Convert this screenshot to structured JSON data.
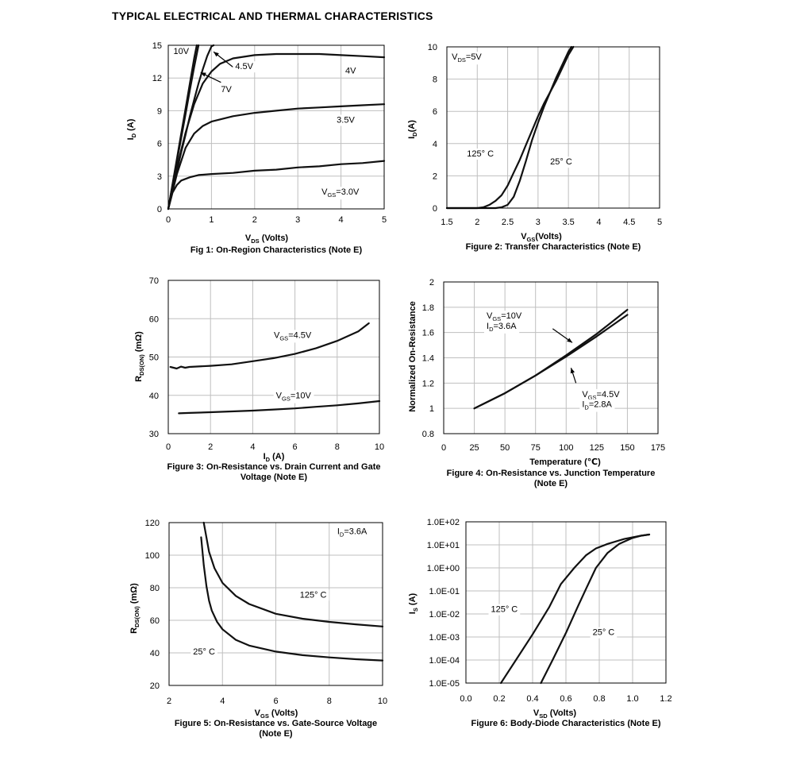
{
  "page": {
    "title": "TYPICAL ELECTRICAL AND THERMAL CHARACTERISTICS"
  },
  "chart_data": [
    {
      "id": "fig1",
      "type": "line",
      "scale": "linear",
      "title": "Fig 1: On-Region Characteristics (Note E)",
      "xlabel": "V",
      "xlabel_sub": "DS",
      "xlabel_suffix": " (Volts)",
      "ylabel": "I",
      "ylabel_sub": "D",
      "ylabel_suffix": " (A)",
      "xlim": [
        0,
        5
      ],
      "ylim": [
        0,
        15
      ],
      "xticks": [
        0,
        1,
        2,
        3,
        4,
        5
      ],
      "yticks": [
        0,
        3,
        6,
        9,
        12,
        15
      ],
      "xtick_labels": [
        "0",
        "1",
        "2",
        "3",
        "4",
        "5"
      ],
      "ytick_labels": [
        "0",
        "3",
        "6",
        "9",
        "12",
        "15"
      ],
      "grid": true,
      "series": [
        {
          "name": "10V",
          "x": [
            0,
            0.1,
            0.2,
            0.3,
            0.4,
            0.5,
            0.6,
            0.66
          ],
          "y": [
            0,
            2.3,
            4.6,
            6.9,
            9.2,
            11.5,
            13.8,
            15
          ]
        },
        {
          "name": "7V",
          "x": [
            0,
            0.1,
            0.2,
            0.3,
            0.4,
            0.5,
            0.6,
            0.7
          ],
          "y": [
            0,
            2.2,
            4.4,
            6.5,
            8.7,
            10.9,
            13.0,
            15
          ]
        },
        {
          "name": "4.5V",
          "x": [
            0,
            0.2,
            0.4,
            0.6,
            0.8,
            1.0,
            1.2,
            1.5,
            2.0,
            2.5,
            3.0,
            3.5,
            4.0,
            4.5,
            5.0
          ],
          "y": [
            0,
            3.8,
            7.0,
            9.6,
            11.5,
            12.6,
            13.3,
            13.8,
            14.1,
            14.2,
            14.2,
            14.2,
            14.1,
            14.0,
            13.9
          ]
        },
        {
          "name": "4V",
          "x": [
            0,
            0.1,
            0.2,
            0.3,
            0.4,
            0.5,
            0.6,
            0.7,
            0.8,
            0.9,
            1.0,
            1.05
          ],
          "y": [
            0,
            1.7,
            3.5,
            5.2,
            6.8,
            8.5,
            10.0,
            11.5,
            12.8,
            14.0,
            14.9,
            15
          ]
        },
        {
          "name": "3.5V",
          "x": [
            0,
            0.2,
            0.4,
            0.6,
            0.8,
            1.0,
            1.5,
            2.0,
            2.5,
            3.0,
            3.5,
            4.0,
            4.5,
            5.0
          ],
          "y": [
            0,
            3.2,
            5.6,
            6.9,
            7.6,
            8.0,
            8.5,
            8.8,
            9.0,
            9.2,
            9.3,
            9.4,
            9.5,
            9.6
          ]
        },
        {
          "name": "3.0V",
          "x": [
            0,
            0.1,
            0.2,
            0.3,
            0.5,
            0.7,
            1.0,
            1.5,
            2.0,
            2.5,
            3.0,
            3.5,
            4.0,
            4.5,
            5.0
          ],
          "y": [
            0,
            1.5,
            2.2,
            2.6,
            2.9,
            3.1,
            3.2,
            3.3,
            3.5,
            3.6,
            3.8,
            3.9,
            4.1,
            4.2,
            4.4
          ]
        }
      ],
      "annotations": [
        {
          "text": "10V",
          "x": 0.12,
          "y": 14.2
        },
        {
          "text": "4.5V",
          "x": 1.55,
          "y": 12.8
        },
        {
          "text": "7V",
          "x": 1.22,
          "y": 10.7
        },
        {
          "text": "4V",
          "x": 4.1,
          "y": 12.4
        },
        {
          "text": "3.5V",
          "x": 3.9,
          "y": 7.9
        },
        {
          "text": "V",
          "sub": "GS",
          "suffix": "=3.0V",
          "x": 3.55,
          "y": 1.3
        }
      ],
      "arrows": [
        {
          "x1": 1.5,
          "y1": 13.0,
          "x2": 1.05,
          "y2": 14.4
        },
        {
          "x1": 1.22,
          "y1": 11.6,
          "x2": 0.75,
          "y2": 12.5
        }
      ]
    },
    {
      "id": "fig2",
      "type": "line",
      "scale": "linear",
      "title": "Figure 2: Transfer Characteristics (Note E)",
      "xlabel": "V",
      "xlabel_sub": "GS",
      "xlabel_suffix": "(Volts)",
      "ylabel": "I",
      "ylabel_sub": "D",
      "ylabel_suffix": "(A)",
      "xlim": [
        1.5,
        5
      ],
      "ylim": [
        0,
        10
      ],
      "xticks": [
        1.5,
        2,
        2.5,
        3,
        3.5,
        4,
        4.5,
        5
      ],
      "yticks": [
        0,
        2,
        4,
        6,
        8,
        10
      ],
      "xtick_labels": [
        "1.5",
        "2",
        "2.5",
        "3",
        "3.5",
        "4",
        "4.5",
        "5"
      ],
      "ytick_labels": [
        "0",
        "2",
        "4",
        "6",
        "8",
        "10"
      ],
      "grid": true,
      "series": [
        {
          "name": "125° C",
          "x": [
            1.5,
            2.0,
            2.1,
            2.2,
            2.3,
            2.4,
            2.5,
            2.6,
            2.7,
            2.8,
            2.9,
            3.0,
            3.1,
            3.2,
            3.3,
            3.4,
            3.5,
            3.58
          ],
          "y": [
            0,
            0,
            0.05,
            0.2,
            0.45,
            0.8,
            1.4,
            2.2,
            3.0,
            3.9,
            4.8,
            5.7,
            6.5,
            7.2,
            7.9,
            8.7,
            9.5,
            10
          ]
        },
        {
          "name": "25° C",
          "x": [
            1.5,
            2.3,
            2.4,
            2.5,
            2.6,
            2.7,
            2.8,
            2.9,
            3.0,
            3.1,
            3.2,
            3.3,
            3.4,
            3.5,
            3.55
          ],
          "y": [
            0,
            0,
            0.05,
            0.2,
            0.7,
            1.7,
            2.9,
            4.2,
            5.3,
            6.3,
            7.2,
            8.1,
            8.9,
            9.7,
            10
          ]
        }
      ],
      "annotations": [
        {
          "text": "V",
          "sub": "DS",
          "suffix": "=5V",
          "x": 1.58,
          "y": 9.2
        },
        {
          "text": "125° C",
          "x": 1.83,
          "y": 3.2
        },
        {
          "text": "25° C",
          "x": 3.2,
          "y": 2.7
        }
      ]
    },
    {
      "id": "fig3",
      "type": "line",
      "scale": "linear",
      "title": "Figure 3: On-Resistance vs. Drain Current and Gate",
      "title_line2": "Voltage (Note E)",
      "xlabel": "I",
      "xlabel_sub": "D",
      "xlabel_suffix": " (A)",
      "ylabel": "R",
      "ylabel_sub": "DS(ON)",
      "ylabel_suffix": " (mΩ)",
      "xlim": [
        0,
        10
      ],
      "ylim": [
        30,
        70
      ],
      "xticks": [
        0,
        2,
        4,
        6,
        8,
        10
      ],
      "yticks": [
        30,
        40,
        50,
        60,
        70
      ],
      "xtick_labels": [
        "0",
        "2",
        "4",
        "6",
        "8",
        "10"
      ],
      "ytick_labels": [
        "30",
        "40",
        "50",
        "60",
        "70"
      ],
      "grid": true,
      "series": [
        {
          "name": "VGS=4.5V",
          "x": [
            0.1,
            0.4,
            0.6,
            0.8,
            1.0,
            2.0,
            3.0,
            4.0,
            5.0,
            6.0,
            7.0,
            8.0,
            9.0,
            9.5
          ],
          "y": [
            47.4,
            47.0,
            47.5,
            47.2,
            47.4,
            47.7,
            48.1,
            48.9,
            49.7,
            50.8,
            52.3,
            54.2,
            56.7,
            58.8
          ]
        },
        {
          "name": "VGS=10V",
          "x": [
            0.5,
            1,
            2,
            3,
            4,
            5,
            6,
            7,
            8,
            9,
            10
          ],
          "y": [
            35.3,
            35.4,
            35.6,
            35.8,
            36.0,
            36.3,
            36.6,
            37.0,
            37.4,
            37.9,
            38.5
          ]
        }
      ],
      "annotations": [
        {
          "text": "V",
          "sub": "GS",
          "suffix": "=4.5V",
          "x": 5.0,
          "y": 55.0
        },
        {
          "text": "V",
          "sub": "GS",
          "suffix": "=10V",
          "x": 5.1,
          "y": 39.2
        }
      ]
    },
    {
      "id": "fig4",
      "type": "line",
      "scale": "linear",
      "title": "Figure 4: On-Resistance vs. Junction Temperature",
      "title_line2": "(Note E)",
      "xlabel": "Temperature (℃)",
      "ylabel": "Normalized On-Resistance",
      "xlim": [
        0,
        175
      ],
      "ylim": [
        0.8,
        2
      ],
      "xticks": [
        0,
        25,
        50,
        75,
        100,
        125,
        150,
        175
      ],
      "yticks": [
        0.8,
        1,
        1.2,
        1.4,
        1.6,
        1.8,
        2
      ],
      "xtick_labels": [
        "0",
        "25",
        "50",
        "75",
        "100",
        "125",
        "150",
        "175"
      ],
      "ytick_labels": [
        "0.8",
        "1",
        "1.2",
        "1.4",
        "1.6",
        "1.8",
        "2"
      ],
      "grid": true,
      "series": [
        {
          "name": "VGS=10V ID=3.6A",
          "x": [
            25,
            50,
            75,
            100,
            125,
            150
          ],
          "y": [
            1.0,
            1.12,
            1.26,
            1.42,
            1.59,
            1.78
          ]
        },
        {
          "name": "VGS=4.5V ID=2.8A",
          "x": [
            25,
            50,
            75,
            100,
            125,
            150
          ],
          "y": [
            1.0,
            1.12,
            1.26,
            1.41,
            1.57,
            1.74
          ]
        }
      ],
      "annotations": [
        {
          "text": "V",
          "sub": "GS",
          "suffix": "=10V",
          "x": 35,
          "y": 1.71
        },
        {
          "text": "I",
          "sub": "D",
          "suffix": "=3.6A",
          "x": 35,
          "y": 1.63
        },
        {
          "text": "V",
          "sub": "GS",
          "suffix": "=4.5V",
          "x": 113,
          "y": 1.09
        },
        {
          "text": "I",
          "sub": "D",
          "suffix": "=2.8A",
          "x": 113,
          "y": 1.01
        }
      ],
      "arrows": [
        {
          "x1": 89,
          "y1": 1.63,
          "x2": 105,
          "y2": 1.52
        },
        {
          "x1": 108,
          "y1": 1.2,
          "x2": 104,
          "y2": 1.32
        }
      ]
    },
    {
      "id": "fig5",
      "type": "line",
      "scale": "linear",
      "title": "Figure 5: On-Resistance vs. Gate-Source Voltage",
      "title_line2": "(Note E)",
      "xlabel": "V",
      "xlabel_sub": "GS",
      "xlabel_suffix": " (Volts)",
      "ylabel": "R",
      "ylabel_sub": "DS(ON)",
      "ylabel_suffix": " (mΩ)",
      "xlim": [
        2,
        10
      ],
      "ylim": [
        20,
        120
      ],
      "xticks": [
        2,
        4,
        6,
        8,
        10
      ],
      "yticks": [
        20,
        40,
        60,
        80,
        100,
        120
      ],
      "xtick_labels": [
        "2",
        "4",
        "6",
        "8",
        "10"
      ],
      "ytick_labels": [
        "20",
        "40",
        "60",
        "80",
        "100",
        "120"
      ],
      "grid": true,
      "series": [
        {
          "name": "125° C",
          "x": [
            3.3,
            3.5,
            3.7,
            4.0,
            4.5,
            5.0,
            6.0,
            7.0,
            8.0,
            9.0,
            10.0
          ],
          "y": [
            120,
            102,
            92,
            83,
            75,
            70,
            64,
            61,
            59,
            57.5,
            56.2
          ]
        },
        {
          "name": "25° C",
          "x": [
            3.2,
            3.3,
            3.4,
            3.5,
            3.6,
            3.8,
            4.0,
            4.5,
            5.0,
            6.0,
            7.0,
            8.0,
            9.0,
            10.0
          ],
          "y": [
            111,
            94,
            81,
            72,
            66,
            59,
            54.5,
            48,
            44.5,
            40.8,
            38.6,
            37.2,
            36.1,
            35.3
          ]
        }
      ],
      "annotations": [
        {
          "text": "I",
          "sub": "D",
          "suffix": "=3.6A",
          "x": 8.3,
          "y": 113
        },
        {
          "text": "125° C",
          "x": 6.9,
          "y": 74
        },
        {
          "text": "25° C",
          "x": 2.9,
          "y": 39
        }
      ]
    },
    {
      "id": "fig6",
      "type": "line",
      "scale": "log",
      "title": "Figure 6: Body-Diode Characteristics (Note E)",
      "xlabel": "V",
      "xlabel_sub": "SD",
      "xlabel_suffix": " (Volts)",
      "ylabel": "I",
      "ylabel_sub": "S",
      "ylabel_suffix": " (A)",
      "xlim": [
        0,
        1.2
      ],
      "ylim": [
        1e-05,
        100
      ],
      "xticks": [
        0,
        0.2,
        0.4,
        0.6,
        0.8,
        1.0,
        1.2
      ],
      "yticks": [
        1e-05,
        0.0001,
        0.001,
        0.01,
        0.1,
        1,
        10,
        100
      ],
      "xtick_labels": [
        "0.0",
        "0.2",
        "0.4",
        "0.6",
        "0.8",
        "1.0",
        "1.2"
      ],
      "ytick_labels": [
        "1.0E-05",
        "1.0E-04",
        "1.0E-03",
        "1.0E-02",
        "1.0E-01",
        "1.0E+00",
        "1.0E+01",
        "1.0E+02"
      ],
      "grid": true,
      "series": [
        {
          "name": "125° C",
          "x": [
            0.21,
            0.3,
            0.4,
            0.5,
            0.57,
            0.65,
            0.72,
            0.78,
            0.85,
            0.95,
            1.05,
            1.1
          ],
          "y": [
            1e-05,
            0.0001,
            0.0013,
            0.02,
            0.2,
            1.0,
            3.5,
            7.0,
            11,
            18,
            25,
            28
          ]
        },
        {
          "name": "25° C",
          "x": [
            0.45,
            0.52,
            0.6,
            0.67,
            0.72,
            0.78,
            0.85,
            0.92,
            1.0,
            1.05,
            1.1
          ],
          "y": [
            1e-05,
            0.0001,
            0.0015,
            0.02,
            0.12,
            1.0,
            4.5,
            11,
            20,
            25,
            28
          ]
        }
      ],
      "annotations": [
        {
          "text": "125° C",
          "x": 0.15,
          "y": 0.012
        },
        {
          "text": "25° C",
          "x": 0.76,
          "y": 0.0012
        }
      ]
    }
  ]
}
